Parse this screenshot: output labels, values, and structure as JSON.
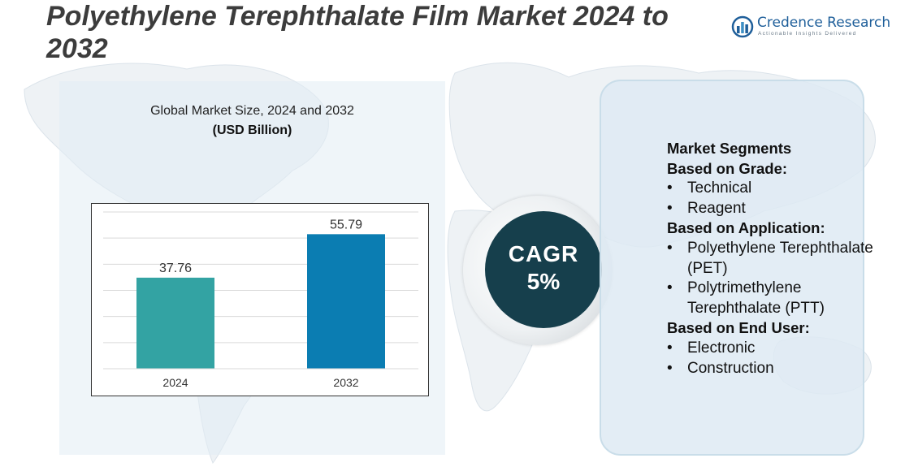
{
  "title": "Polyethylene Terephthalate Film Market 2024 to 2032",
  "logo": {
    "name": "Credence Research",
    "tagline": "Actionable Insights Delivered",
    "icon": "bar-chart-logo-icon",
    "color": "#1f5f9a"
  },
  "chart_title": "Global Market Size, 2024 and 2032",
  "chart_unit": "(USD Billion)",
  "chart_data": {
    "type": "bar",
    "categories": [
      "2024",
      "2032"
    ],
    "values": [
      37.76,
      55.79
    ],
    "data_labels": [
      "37.76",
      "55.79"
    ],
    "colors": [
      "#33a3a3",
      "#0b7db2"
    ],
    "ylim": [
      0,
      65
    ],
    "grid": true,
    "xlabel": "",
    "ylabel": ""
  },
  "cagr": {
    "label": "CAGR",
    "value": "5%",
    "color": "#163f4c"
  },
  "segments": [
    {
      "type": "head",
      "text": "Market Segments"
    },
    {
      "type": "head",
      "text": "Based on Grade:"
    },
    {
      "type": "item",
      "text": "Technical"
    },
    {
      "type": "item",
      "text": "Reagent"
    },
    {
      "type": "head",
      "text": "Based on Application:"
    },
    {
      "type": "item",
      "text": "Polyethylene Terephthalate (PET)"
    },
    {
      "type": "item",
      "text": "Polytrimethylene Terephthalate (PTT)"
    },
    {
      "type": "head",
      "text": "Based on End User:"
    },
    {
      "type": "item",
      "text": "Electronic"
    },
    {
      "type": "item",
      "text": "Construction"
    }
  ]
}
